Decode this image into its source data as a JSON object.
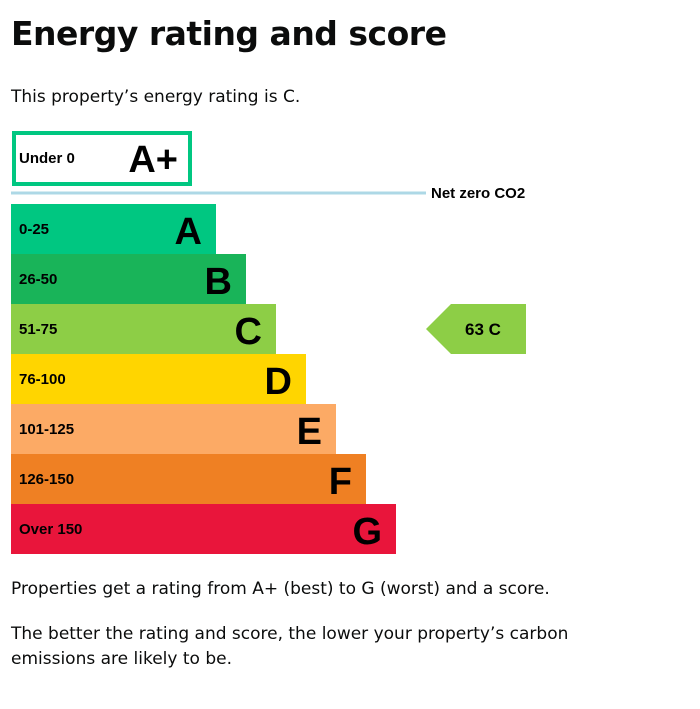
{
  "page": {
    "title": "Energy rating and score",
    "intro": "This property’s energy rating is C.",
    "paragraph_1": "Properties get a rating from A+ (best) to G (worst) and a score.",
    "paragraph_2": "The better the rating and score, the lower your property’s carbon emissions are likely to be."
  },
  "chart_data": {
    "type": "bar",
    "title": "",
    "bands": [
      {
        "letter": "A+",
        "range": "Under 0",
        "color": "#00c781",
        "outlined": true
      },
      {
        "letter": "A",
        "range": "0-25",
        "color": "#00c781"
      },
      {
        "letter": "B",
        "range": "26-50",
        "color": "#19b459"
      },
      {
        "letter": "C",
        "range": "51-75",
        "color": "#8dce46"
      },
      {
        "letter": "D",
        "range": "76-100",
        "color": "#ffd500"
      },
      {
        "letter": "E",
        "range": "101-125",
        "color": "#fcaa65"
      },
      {
        "letter": "F",
        "range": "126-150",
        "color": "#ef8023"
      },
      {
        "letter": "G",
        "range": "Over 150",
        "color": "#e9153b"
      }
    ],
    "net_zero_label": "Net zero CO2",
    "net_zero_color": "#add8e6",
    "current_rating": {
      "score": 63,
      "letter": "C",
      "label": "63  C",
      "color": "#8dce46"
    }
  }
}
